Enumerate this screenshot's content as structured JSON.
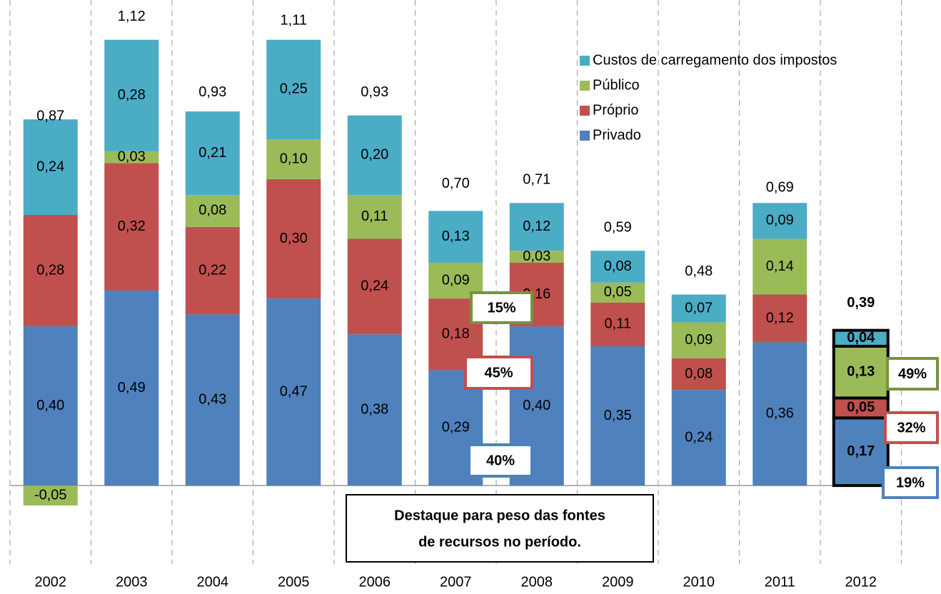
{
  "chart_data": {
    "type": "bar",
    "stacked": true,
    "categories": [
      "2002",
      "2003",
      "2004",
      "2005",
      "2006",
      "2007",
      "2008",
      "2009",
      "2010",
      "2011",
      "2012"
    ],
    "series": [
      {
        "name": "Privado",
        "color": "#4f81bd",
        "values": [
          0.4,
          0.49,
          0.43,
          0.47,
          0.38,
          0.29,
          0.4,
          0.35,
          0.24,
          0.36,
          0.17
        ],
        "value_labels": [
          "0,40",
          "0,49",
          "0,43",
          "0,47",
          "0,38",
          "0,29",
          "0,40",
          "0,35",
          "0,24",
          "0,36",
          "0,17"
        ]
      },
      {
        "name": "Próprio",
        "color": "#c0504d",
        "values": [
          0.28,
          0.32,
          0.22,
          0.3,
          0.24,
          0.18,
          0.16,
          0.11,
          0.08,
          0.12,
          0.05
        ],
        "value_labels": [
          "0,28",
          "0,32",
          "0,22",
          "0,30",
          "0,24",
          "0,18",
          "0,16",
          "0,11",
          "0,08",
          "0,12",
          "0,05"
        ]
      },
      {
        "name": "Público",
        "color": "#9bbb59",
        "values": [
          -0.05,
          0.03,
          0.08,
          0.1,
          0.11,
          0.09,
          0.03,
          0.05,
          0.09,
          0.14,
          0.13
        ],
        "value_labels": [
          "-0,05",
          "0,03",
          "0,08",
          "0,10",
          "0,11",
          "0,09",
          "0,03",
          "0,05",
          "0,09",
          "0,14",
          "0,13"
        ]
      },
      {
        "name": "Custos de carregamento dos impostos",
        "color": "#4bacc6",
        "values": [
          0.24,
          0.28,
          0.21,
          0.25,
          0.2,
          0.13,
          0.12,
          0.08,
          0.07,
          0.09,
          0.04
        ],
        "value_labels": [
          "0,24",
          "0,28",
          "0,21",
          "0,25",
          "0,20",
          "0,13",
          "0,12",
          "0,08",
          "0,07",
          "0,09",
          "0,04"
        ]
      }
    ],
    "totals": [
      0.87,
      1.12,
      0.93,
      1.11,
      0.93,
      0.7,
      0.71,
      0.59,
      0.48,
      0.69,
      0.39
    ],
    "total_labels": [
      "0,87",
      "1,12",
      "0,93",
      "1,11",
      "0,93",
      "0,70",
      "0,71",
      "0,59",
      "0,48",
      "0,69",
      "0,39"
    ],
    "ylim": [
      -0.12,
      1.22
    ],
    "legend": "top-right",
    "annotations": [
      {
        "text": "15%",
        "color": "#77933c"
      },
      {
        "text": "45%",
        "color": "#c0504d"
      },
      {
        "text": "40%",
        "color": "#4f81bd"
      },
      {
        "text": "49%",
        "color": "#77933c"
      },
      {
        "text": "32%",
        "color": "#c0504d"
      },
      {
        "text": "19%",
        "color": "#4f81bd"
      }
    ],
    "note": [
      "Destaque para peso das fontes",
      "de recursos  no período."
    ]
  }
}
